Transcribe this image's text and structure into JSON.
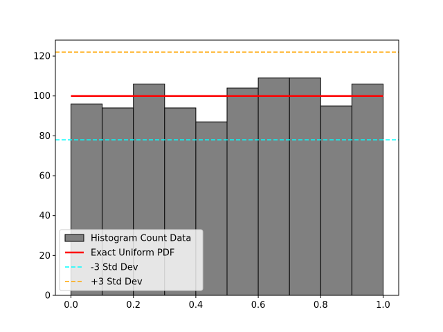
{
  "chart_data": {
    "type": "bar",
    "bins": [
      {
        "x0": 0.0,
        "x1": 0.1,
        "count": 96
      },
      {
        "x0": 0.1,
        "x1": 0.2,
        "count": 94
      },
      {
        "x0": 0.2,
        "x1": 0.3,
        "count": 106
      },
      {
        "x0": 0.3,
        "x1": 0.4,
        "count": 94
      },
      {
        "x0": 0.4,
        "x1": 0.5,
        "count": 87
      },
      {
        "x0": 0.5,
        "x1": 0.6,
        "count": 104
      },
      {
        "x0": 0.6,
        "x1": 0.7,
        "count": 109
      },
      {
        "x0": 0.7,
        "x1": 0.8,
        "count": 109
      },
      {
        "x0": 0.8,
        "x1": 0.9,
        "count": 95
      },
      {
        "x0": 0.9,
        "x1": 1.0,
        "count": 106
      }
    ],
    "series": [
      {
        "name": "Histogram Count Data",
        "kind": "histogram",
        "color": "#808080"
      },
      {
        "name": "Exact Uniform PDF",
        "kind": "line",
        "color": "#ff0000",
        "x": [
          0.0,
          1.0
        ],
        "y": [
          100,
          100
        ]
      },
      {
        "name": "-3 Std Dev",
        "kind": "hline",
        "color": "#00ffff",
        "y": 78,
        "style": "dashed"
      },
      {
        "name": "+3 Std Dev",
        "kind": "hline",
        "color": "#ffa500",
        "y": 122,
        "style": "dashed"
      }
    ],
    "xlim": [
      -0.05,
      1.05
    ],
    "ylim": [
      0,
      128
    ],
    "xticks": [
      0.0,
      0.2,
      0.4,
      0.6,
      0.8,
      1.0
    ],
    "xtick_labels": [
      "0.0",
      "0.2",
      "0.4",
      "0.6",
      "0.8",
      "1.0"
    ],
    "yticks": [
      0,
      20,
      40,
      60,
      80,
      100,
      120
    ],
    "ytick_labels": [
      "0",
      "20",
      "40",
      "60",
      "80",
      "100",
      "120"
    ],
    "title": "",
    "xlabel": "",
    "ylabel": "",
    "grid": false,
    "legend_position": "lower-left"
  }
}
